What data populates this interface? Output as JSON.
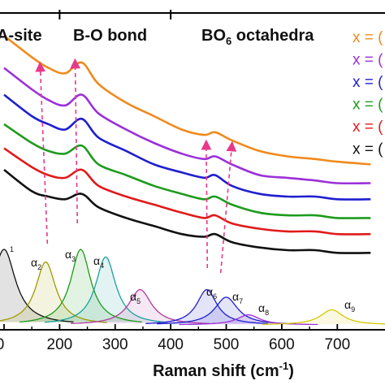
{
  "chart_data": {
    "type": "line",
    "xlabel_main": "Raman shift (cm",
    "xlabel_sup": "-1",
    "xlabel_close": ")",
    "x_ticks": [
      "0",
      "200",
      "300",
      "400",
      "500",
      "600",
      "700"
    ],
    "xlim": [
      100,
      780
    ],
    "regions": [
      "A-site",
      "B-O bond"
    ],
    "region_bo6": {
      "main": "BO",
      "sub": "6",
      "rest": " octahedra"
    },
    "legend": [
      {
        "label": "x = (",
        "color": "#f08a1c"
      },
      {
        "label": "x = (",
        "color": "#9b30d9"
      },
      {
        "label": "x = (",
        "color": "#1f1fcf"
      },
      {
        "label": "x = (",
        "color": "#1e9b1e"
      },
      {
        "label": "x = (",
        "color": "#e01a1a"
      },
      {
        "label": "x = (",
        "color": "#111111"
      }
    ],
    "series": [
      {
        "color": "#f08a1c",
        "values": [
          [
            100,
            0.8
          ],
          [
            150,
            0.72
          ],
          [
            180,
            0.68
          ],
          [
            210,
            0.66
          ],
          [
            240,
            0.7
          ],
          [
            270,
            0.62
          ],
          [
            320,
            0.55
          ],
          [
            370,
            0.5
          ],
          [
            420,
            0.45
          ],
          [
            460,
            0.43
          ],
          [
            480,
            0.44
          ],
          [
            510,
            0.41
          ],
          [
            560,
            0.37
          ],
          [
            610,
            0.35
          ],
          [
            660,
            0.34
          ],
          [
            700,
            0.33
          ],
          [
            760,
            0.32
          ]
        ]
      },
      {
        "color": "#9b30d9",
        "values": [
          [
            100,
            0.68
          ],
          [
            150,
            0.6
          ],
          [
            180,
            0.56
          ],
          [
            210,
            0.54
          ],
          [
            240,
            0.58
          ],
          [
            270,
            0.51
          ],
          [
            320,
            0.45
          ],
          [
            370,
            0.4
          ],
          [
            420,
            0.36
          ],
          [
            460,
            0.34
          ],
          [
            480,
            0.35
          ],
          [
            510,
            0.32
          ],
          [
            560,
            0.28
          ],
          [
            610,
            0.27
          ],
          [
            660,
            0.26
          ],
          [
            700,
            0.25
          ],
          [
            760,
            0.25
          ]
        ]
      },
      {
        "color": "#1f1fcf",
        "values": [
          [
            100,
            0.58
          ],
          [
            150,
            0.5
          ],
          [
            180,
            0.47
          ],
          [
            210,
            0.45
          ],
          [
            240,
            0.49
          ],
          [
            270,
            0.42
          ],
          [
            320,
            0.37
          ],
          [
            370,
            0.32
          ],
          [
            420,
            0.29
          ],
          [
            460,
            0.27
          ],
          [
            480,
            0.28
          ],
          [
            510,
            0.24
          ],
          [
            560,
            0.21
          ],
          [
            610,
            0.2
          ],
          [
            660,
            0.2
          ],
          [
            700,
            0.19
          ],
          [
            760,
            0.19
          ]
        ]
      },
      {
        "color": "#1e9b1e",
        "values": [
          [
            100,
            0.47
          ],
          [
            150,
            0.4
          ],
          [
            180,
            0.37
          ],
          [
            210,
            0.36
          ],
          [
            240,
            0.39
          ],
          [
            270,
            0.32
          ],
          [
            320,
            0.28
          ],
          [
            370,
            0.24
          ],
          [
            420,
            0.21
          ],
          [
            460,
            0.19
          ],
          [
            480,
            0.2
          ],
          [
            510,
            0.17
          ],
          [
            560,
            0.14
          ],
          [
            610,
            0.13
          ],
          [
            660,
            0.13
          ],
          [
            700,
            0.12
          ],
          [
            760,
            0.12
          ]
        ]
      },
      {
        "color": "#e01a1a",
        "values": [
          [
            100,
            0.38
          ],
          [
            150,
            0.31
          ],
          [
            180,
            0.28
          ],
          [
            210,
            0.27
          ],
          [
            240,
            0.3
          ],
          [
            270,
            0.24
          ],
          [
            320,
            0.2
          ],
          [
            370,
            0.17
          ],
          [
            420,
            0.14
          ],
          [
            460,
            0.12
          ],
          [
            480,
            0.13
          ],
          [
            510,
            0.1
          ],
          [
            560,
            0.08
          ],
          [
            610,
            0.07
          ],
          [
            660,
            0.07
          ],
          [
            700,
            0.06
          ],
          [
            760,
            0.06
          ]
        ]
      },
      {
        "color": "#111111",
        "values": [
          [
            100,
            0.3
          ],
          [
            150,
            0.22
          ],
          [
            180,
            0.2
          ],
          [
            210,
            0.19
          ],
          [
            240,
            0.21
          ],
          [
            270,
            0.16
          ],
          [
            320,
            0.12
          ],
          [
            370,
            0.09
          ],
          [
            420,
            0.06
          ],
          [
            460,
            0.05
          ],
          [
            480,
            0.06
          ],
          [
            510,
            0.03
          ],
          [
            560,
            0.01
          ],
          [
            610,
            0.0
          ],
          [
            660,
            0.0
          ],
          [
            700,
            -0.01
          ],
          [
            760,
            -0.01
          ]
        ]
      }
    ],
    "fit_peaks": [
      {
        "label": "1",
        "center": 100,
        "height": 0.3,
        "width": 25,
        "color": "#111111"
      },
      {
        "label": "2",
        "center": 175,
        "height": 0.25,
        "width": 22,
        "color": "#a09a00"
      },
      {
        "label": "3",
        "center": 238,
        "height": 0.3,
        "width": 22,
        "color": "#1a9b1a"
      },
      {
        "label": "4",
        "center": 283,
        "height": 0.27,
        "width": 22,
        "color": "#1aa0a0"
      },
      {
        "label": "5",
        "center": 345,
        "height": 0.14,
        "width": 25,
        "color": "#b03a9e"
      },
      {
        "label": "6",
        "center": 465,
        "height": 0.14,
        "width": 22,
        "color": "#1f1fcf"
      },
      {
        "label": "7",
        "center": 500,
        "height": 0.11,
        "width": 25,
        "color": "#1f1fcf"
      },
      {
        "label": "8",
        "center": 540,
        "height": 0.04,
        "width": 25,
        "color": "#9b30d9"
      },
      {
        "label": "9",
        "center": 690,
        "height": 0.06,
        "width": 25,
        "color": "#d6c800"
      }
    ],
    "alpha_symbol": "α",
    "grid": false
  }
}
